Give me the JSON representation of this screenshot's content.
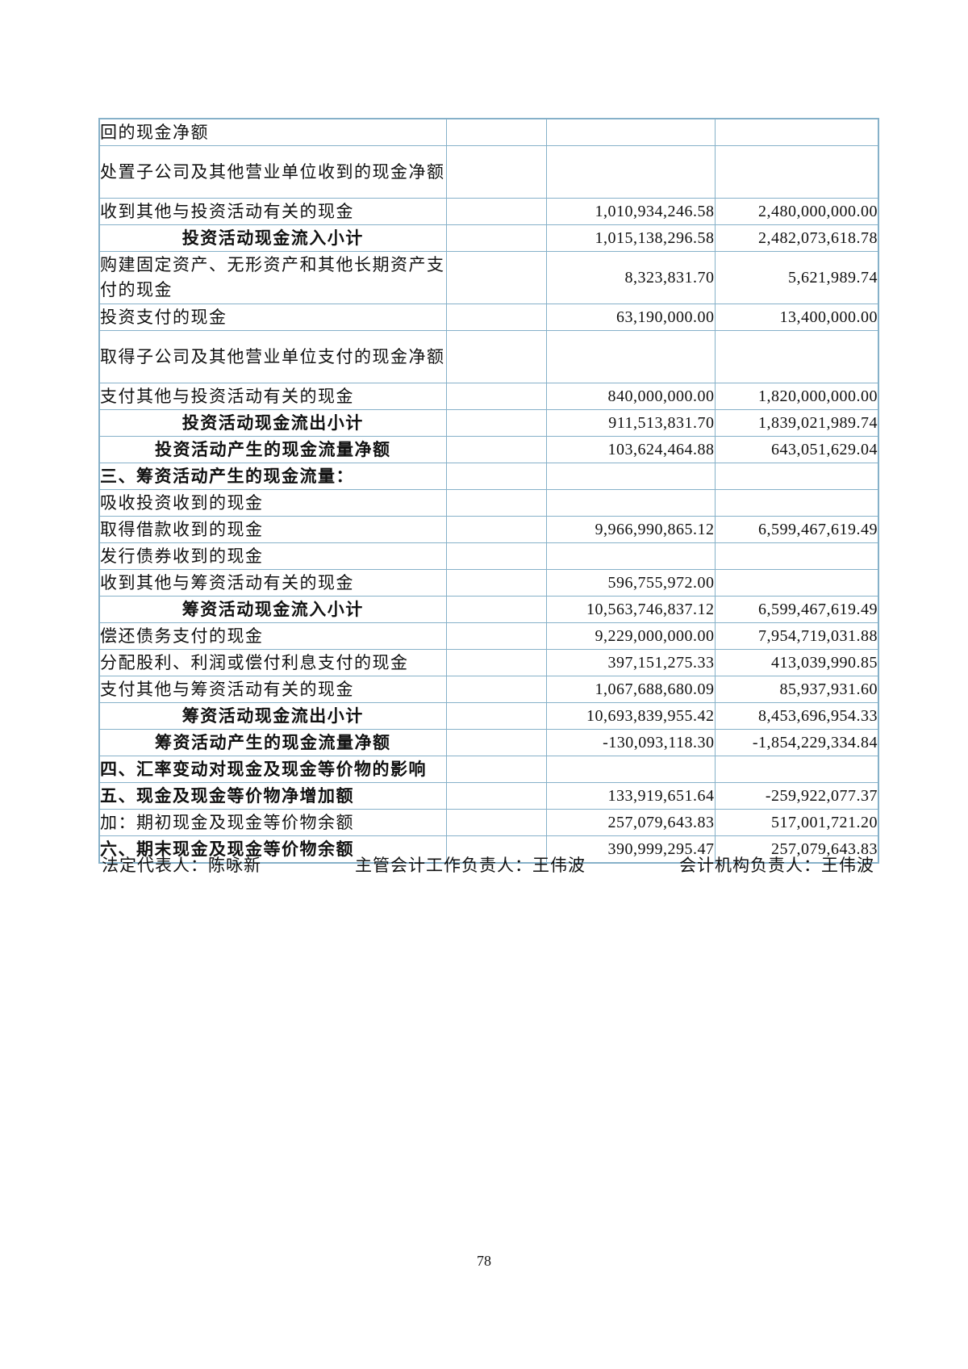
{
  "colors": {
    "row_shade": "#e4e4e4",
    "table_border": "#86b1c9",
    "text": "#111111"
  },
  "table": {
    "rows": [
      {
        "label": "回的现金净额",
        "current": "",
        "previous": "",
        "bold": false,
        "center": false,
        "shade": "gray",
        "lines": 1
      },
      {
        "label": "处置子公司及其他营业单位收到的现金净额",
        "current": "",
        "previous": "",
        "bold": false,
        "center": false,
        "shade": "white",
        "lines": 2
      },
      {
        "label": "收到其他与投资活动有关的现金",
        "current": "1,010,934,246.58",
        "previous": "2,480,000,000.00",
        "bold": false,
        "center": false,
        "shade": "gray",
        "lines": 1
      },
      {
        "label": "投资活动现金流入小计",
        "current": "1,015,138,296.58",
        "previous": "2,482,073,618.78",
        "bold": true,
        "center": true,
        "shade": "white",
        "lines": 1
      },
      {
        "label": "购建固定资产、无形资产和其他长期资产支付的现金",
        "current": "8,323,831.70",
        "previous": "5,621,989.74",
        "bold": false,
        "center": false,
        "shade": "white",
        "lines": 2
      },
      {
        "label": "投资支付的现金",
        "current": "63,190,000.00",
        "previous": "13,400,000.00",
        "bold": false,
        "center": false,
        "shade": "gray",
        "lines": 1
      },
      {
        "label": "取得子公司及其他营业单位支付的现金净额",
        "current": "",
        "previous": "",
        "bold": false,
        "center": false,
        "shade": "white",
        "lines": 2
      },
      {
        "label": "支付其他与投资活动有关的现金",
        "current": "840,000,000.00",
        "previous": "1,820,000,000.00",
        "bold": false,
        "center": false,
        "shade": "gray",
        "lines": 1
      },
      {
        "label": "投资活动现金流出小计",
        "current": "911,513,831.70",
        "previous": "1,839,021,989.74",
        "bold": true,
        "center": true,
        "shade": "white",
        "lines": 1
      },
      {
        "label": "投资活动产生的现金流量净额",
        "current": "103,624,464.88",
        "previous": "643,051,629.04",
        "bold": true,
        "center": true,
        "shade": "gray",
        "lines": 1
      },
      {
        "label": "三、筹资活动产生的现金流量：",
        "current": "",
        "previous": "",
        "bold": true,
        "center": false,
        "shade": "full",
        "lines": 1
      },
      {
        "label": "吸收投资收到的现金",
        "current": "",
        "previous": "",
        "bold": false,
        "center": false,
        "shade": "white",
        "lines": 1
      },
      {
        "label": "取得借款收到的现金",
        "current": "9,966,990,865.12",
        "previous": "6,599,467,619.49",
        "bold": false,
        "center": false,
        "shade": "gray",
        "lines": 1
      },
      {
        "label": "发行债券收到的现金",
        "current": "",
        "previous": "",
        "bold": false,
        "center": false,
        "shade": "white",
        "lines": 1
      },
      {
        "label": "收到其他与筹资活动有关的现金",
        "current": "596,755,972.00",
        "previous": "",
        "bold": false,
        "center": false,
        "shade": "gray",
        "lines": 1
      },
      {
        "label": "筹资活动现金流入小计",
        "current": "10,563,746,837.12",
        "previous": "6,599,467,619.49",
        "bold": true,
        "center": true,
        "shade": "white",
        "lines": 1
      },
      {
        "label": "偿还债务支付的现金",
        "current": "9,229,000,000.00",
        "previous": "7,954,719,031.88",
        "bold": false,
        "center": false,
        "shade": "gray",
        "lines": 1
      },
      {
        "label": "分配股利、利润或偿付利息支付的现金",
        "current": "397,151,275.33",
        "previous": "413,039,990.85",
        "bold": false,
        "center": false,
        "shade": "white",
        "lines": 1
      },
      {
        "label": "支付其他与筹资活动有关的现金",
        "current": "1,067,688,680.09",
        "previous": "85,937,931.60",
        "bold": false,
        "center": false,
        "shade": "gray",
        "lines": 1
      },
      {
        "label": "筹资活动现金流出小计",
        "current": "10,693,839,955.42",
        "previous": "8,453,696,954.33",
        "bold": true,
        "center": true,
        "shade": "white",
        "lines": 1
      },
      {
        "label": "筹资活动产生的现金流量净额",
        "current": "-130,093,118.30",
        "previous": "-1,854,229,334.84",
        "bold": true,
        "center": true,
        "shade": "gray",
        "lines": 1
      },
      {
        "label": "四、汇率变动对现金及现金等价物的影响",
        "current": "",
        "previous": "",
        "bold": true,
        "center": false,
        "shade": "gray",
        "lines": 1
      },
      {
        "label": "五、现金及现金等价物净增加额",
        "current": "133,919,651.64",
        "previous": "-259,922,077.37",
        "bold": true,
        "center": false,
        "shade": "gray",
        "lines": 1
      },
      {
        "label": "加：期初现金及现金等价物余额",
        "current": "257,079,643.83",
        "previous": "517,001,721.20",
        "bold": false,
        "center": false,
        "shade": "white",
        "lines": 1
      },
      {
        "label": "六、期末现金及现金等价物余额",
        "current": "390,999,295.47",
        "previous": "257,079,643.83",
        "bold": true,
        "center": false,
        "shade": "gray",
        "lines": 1
      }
    ]
  },
  "footer": {
    "legal_representative": "法定代表人：陈咏新",
    "chief_accounting_officer": "主管会计工作负责人：王伟波",
    "accounting_department_head": "会计机构负责人：王伟波"
  },
  "page": {
    "number": "78"
  }
}
